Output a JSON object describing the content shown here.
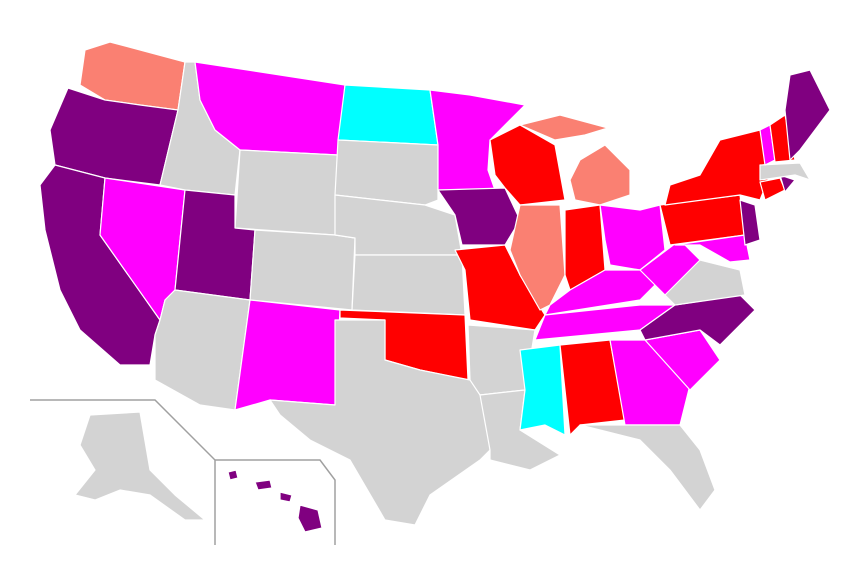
{
  "map": {
    "colors": [
      "#800080",
      "#ff00ff",
      "#ff0000",
      "#fa8072",
      "#00ffff",
      "#d3d3d3"
    ]
  }
}
